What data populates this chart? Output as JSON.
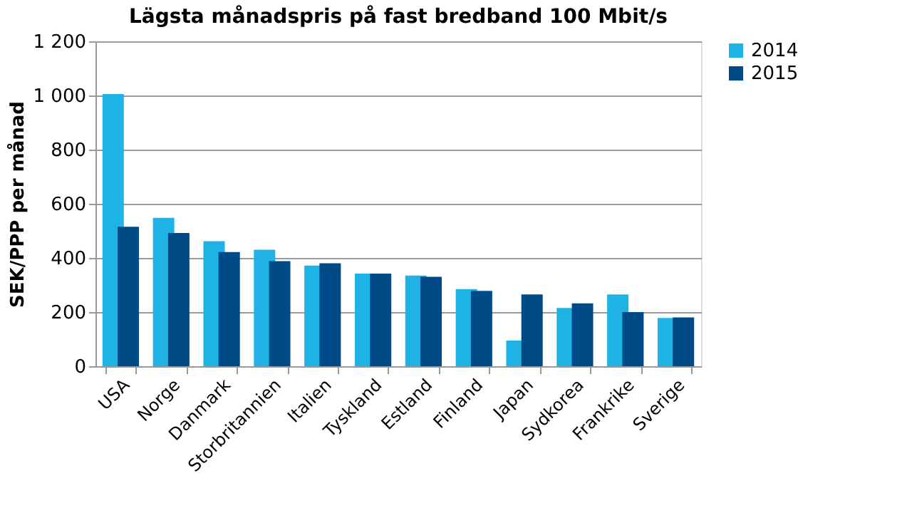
{
  "chart_data": {
    "type": "bar",
    "title": "Lägsta månadspris på fast bredband 100 Mbit/s",
    "ylabel": "SEK/PPP per månad",
    "categories": [
      "USA",
      "Norge",
      "Danmark",
      "Storbritannien",
      "Italien",
      "Tyskland",
      "Estland",
      "Finland",
      "Japan",
      "Sydkorea",
      "Frankrike",
      "Sverige"
    ],
    "series": [
      {
        "name": "2014",
        "color": "#1fb3e5",
        "values": [
          1005,
          548,
          462,
          430,
          372,
          342,
          335,
          285,
          95,
          215,
          265,
          178
        ]
      },
      {
        "name": "2015",
        "color": "#004b87",
        "values": [
          515,
          492,
          422,
          388,
          380,
          342,
          330,
          278,
          265,
          232,
          200,
          180
        ]
      }
    ],
    "ylim": [
      0,
      1200
    ],
    "yticks": [
      0,
      200,
      400,
      600,
      800,
      {
        "value": 1000,
        "label": "1 000"
      },
      {
        "value": 1200,
        "label": "1 200"
      }
    ],
    "grid": "y",
    "legend": "right"
  }
}
